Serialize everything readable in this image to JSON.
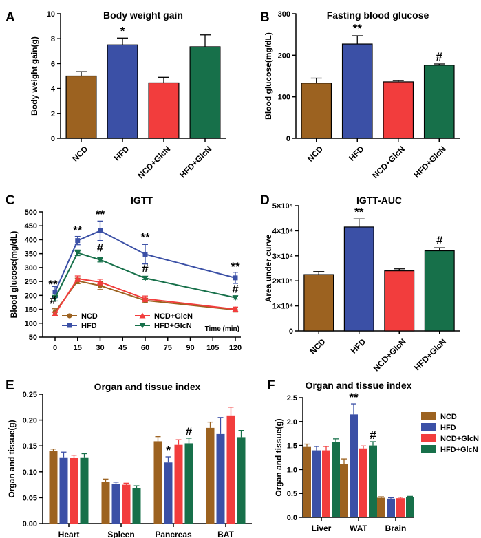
{
  "colors": {
    "NCD": "#9c6220",
    "HFD": "#3b50a6",
    "NCD+GlcN": "#f23d3d",
    "HFD+GlcN": "#17704a"
  },
  "chart_data": [
    {
      "id": "A",
      "letter": "A",
      "type": "bar",
      "title": "Body weight gain",
      "ylabel": "Body weight gain(g)",
      "ylim": [
        0,
        10
      ],
      "yticks": [
        "0",
        "2",
        "4",
        "6",
        "8",
        "10"
      ],
      "categories": [
        "NCD",
        "HFD",
        "NCD+GlcN",
        "HFD+GlcN"
      ],
      "values": [
        5.0,
        7.5,
        4.45,
        7.35
      ],
      "errors": [
        0.35,
        0.55,
        0.45,
        0.95
      ],
      "annotations": [
        "",
        "*",
        "",
        ""
      ]
    },
    {
      "id": "B",
      "letter": "B",
      "type": "bar",
      "title": "Fasting blood glucose",
      "ylabel": "Blood glucose(mg/dL)",
      "ylim": [
        0,
        300
      ],
      "yticks": [
        "0",
        "100",
        "200",
        "300"
      ],
      "categories": [
        "NCD",
        "HFD",
        "NCD+GlcN",
        "HFD+GlcN"
      ],
      "values": [
        133,
        227,
        136,
        176
      ],
      "errors": [
        12,
        20,
        3,
        3
      ],
      "annotations": [
        "",
        "**",
        "",
        "#"
      ]
    },
    {
      "id": "C",
      "letter": "C",
      "type": "line",
      "title": "IGTT",
      "ylabel": "Blood glucose(mg/dL)",
      "xlabel": "Time (min)",
      "ylim": [
        50,
        500
      ],
      "yticks": [
        "50",
        "100",
        "150",
        "200",
        "250",
        "300",
        "350",
        "400",
        "450",
        "500"
      ],
      "xticks": [
        "0",
        "15",
        "30",
        "45",
        "60",
        "75",
        "90",
        "105",
        "120"
      ],
      "x": [
        0,
        15,
        30,
        60,
        120
      ],
      "series": [
        {
          "name": "NCD",
          "values": [
            140,
            252,
            235,
            182,
            148
          ],
          "errors": [
            12,
            10,
            14,
            8,
            8
          ]
        },
        {
          "name": "HFD",
          "values": [
            212,
            397,
            432,
            348,
            263
          ],
          "errors": [
            20,
            15,
            35,
            35,
            20
          ]
        },
        {
          "name": "NCD+GlcN",
          "values": [
            133,
            260,
            248,
            188,
            150
          ],
          "errors": [
            6,
            10,
            10,
            10,
            8
          ]
        },
        {
          "name": "HFD+GlcN",
          "values": [
            190,
            353,
            328,
            262,
            192
          ],
          "errors": [
            10,
            10,
            8,
            5,
            5
          ]
        }
      ],
      "annotations": [
        {
          "x": 0,
          "y": 225,
          "text": "**"
        },
        {
          "x": 0,
          "y": 170,
          "text": "#"
        },
        {
          "x": 15,
          "y": 420,
          "text": "**"
        },
        {
          "x": 30,
          "y": 478,
          "text": "**"
        },
        {
          "x": 30,
          "y": 358,
          "text": "#"
        },
        {
          "x": 60,
          "y": 395,
          "text": "**"
        },
        {
          "x": 60,
          "y": 283,
          "text": "#"
        },
        {
          "x": 120,
          "y": 290,
          "text": "**"
        },
        {
          "x": 120,
          "y": 210,
          "text": "#"
        }
      ]
    },
    {
      "id": "D",
      "letter": "D",
      "type": "bar",
      "title": "IGTT-AUC",
      "ylabel": "Area under curve",
      "ylim": [
        0,
        50000
      ],
      "yticks": [
        "0",
        "1×10⁴",
        "2×10⁴",
        "3×10⁴",
        "4×10⁴",
        "5×10⁴"
      ],
      "categories": [
        "NCD",
        "HFD",
        "NCD+GlcN",
        "HFD+GlcN"
      ],
      "values": [
        22500,
        41500,
        24000,
        32000
      ],
      "errors": [
        1200,
        3200,
        800,
        1200
      ],
      "annotations": [
        "",
        "**",
        "",
        "#"
      ]
    },
    {
      "id": "E",
      "letter": "E",
      "type": "bar",
      "title": "Organ and tissue index",
      "ylabel": "Organ and tissue(g)",
      "ylim": [
        0,
        0.25
      ],
      "yticks": [
        "0.00",
        "0.05",
        "0.10",
        "0.15",
        "0.20",
        "0.25"
      ],
      "categories": [
        "Heart",
        "Spleen",
        "Pancreas",
        "BAT"
      ],
      "series": [
        {
          "name": "NCD",
          "values": [
            0.14,
            0.081,
            0.159,
            0.185
          ],
          "errors": [
            0.004,
            0.005,
            0.009,
            0.011
          ]
        },
        {
          "name": "HFD",
          "values": [
            0.128,
            0.076,
            0.118,
            0.173
          ],
          "errors": [
            0.01,
            0.004,
            0.011,
            0.032
          ]
        },
        {
          "name": "NCD+GlcN",
          "values": [
            0.127,
            0.075,
            0.152,
            0.209
          ],
          "errors": [
            0.005,
            0.003,
            0.01,
            0.016
          ]
        },
        {
          "name": "HFD+GlcN",
          "values": [
            0.128,
            0.069,
            0.155,
            0.167
          ],
          "errors": [
            0.007,
            0.004,
            0.01,
            0.013
          ]
        }
      ],
      "annotations": [
        {
          "category": 2,
          "series": 1,
          "text": "*"
        },
        {
          "category": 2,
          "series": 3,
          "text": "#"
        }
      ]
    },
    {
      "id": "F",
      "letter": "F",
      "type": "bar",
      "title": "Organ and tissue index",
      "ylabel": "Organ and tissue(g)",
      "ylim": [
        0,
        2.5
      ],
      "yticks": [
        "0.0",
        "0.5",
        "1.0",
        "1.5",
        "2.0",
        "2.5"
      ],
      "categories": [
        "Liver",
        "WAT",
        "Brain"
      ],
      "series": [
        {
          "name": "NCD",
          "values": [
            1.47,
            1.12,
            0.41
          ],
          "errors": [
            0.06,
            0.1,
            0.02
          ]
        },
        {
          "name": "HFD",
          "values": [
            1.4,
            2.15,
            0.39
          ],
          "errors": [
            0.08,
            0.22,
            0.02
          ]
        },
        {
          "name": "NCD+GlcN",
          "values": [
            1.4,
            1.44,
            0.4
          ],
          "errors": [
            0.08,
            0.05,
            0.02
          ]
        },
        {
          "name": "HFD+GlcN",
          "values": [
            1.58,
            1.5,
            0.42
          ],
          "errors": [
            0.06,
            0.08,
            0.02
          ]
        }
      ],
      "annotations": [
        {
          "category": 1,
          "series": 1,
          "text": "**"
        },
        {
          "category": 1,
          "series": 3,
          "text": "#"
        }
      ],
      "legend": [
        "NCD",
        "HFD",
        "NCD+GlcN",
        "HFD+GlcN"
      ],
      "legend_position": "right"
    }
  ]
}
